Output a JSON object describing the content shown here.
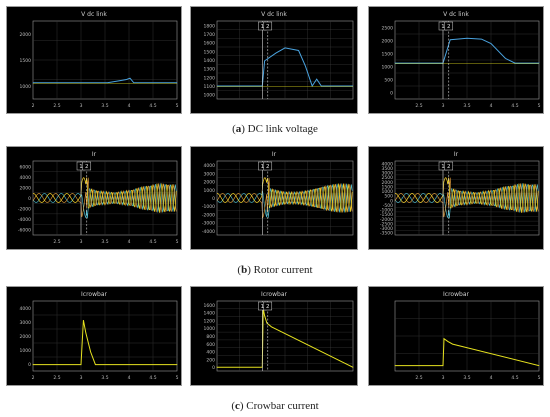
{
  "captions": {
    "a": {
      "label": "a",
      "text": "DC link voltage"
    },
    "b": {
      "label": "b",
      "text": "Rotor current"
    },
    "c": {
      "label": "c",
      "text": "Crowbar current"
    }
  },
  "colors": {
    "background": "#000000",
    "grid": "#3a3a3a",
    "axis": "#9a9a9a",
    "trace_blue": "#4aa3df",
    "trace_yellow": "#e6e21f",
    "trace_red": "#e84a4a",
    "trace_cyan": "#4ec4d8",
    "trace_orange": "#e9a23b",
    "marker": "#cfcfcf"
  },
  "chart_data": [
    {
      "type": "line",
      "title": "V dc link",
      "x": [
        2.0,
        3.55,
        3.8,
        3.95,
        4.02,
        4.1,
        5.0
      ],
      "series": [
        {
          "name": "",
          "values": [
            1150,
            1150,
            1180,
            1200,
            1220,
            1150,
            1150
          ]
        }
      ],
      "xlim": [
        2,
        5
      ],
      "ylim": [
        900,
        2100
      ],
      "xticks": [
        "2",
        "2.5",
        "3",
        "3.5",
        "4",
        "4.5",
        "5"
      ],
      "yticks": [
        "1000",
        "1500",
        "2000"
      ],
      "markers": []
    },
    {
      "type": "line",
      "title": "V dc link",
      "x": [
        2.0,
        3.0,
        3.05,
        3.3,
        3.5,
        3.8,
        3.95,
        4.1,
        4.2,
        4.3,
        5.0
      ],
      "series": [
        {
          "name": "",
          "values": [
            1150,
            1150,
            1440,
            1530,
            1590,
            1560,
            1380,
            1150,
            1230,
            1150,
            1150
          ]
        }
      ],
      "xlim": [
        2,
        5
      ],
      "ylim": [
        1000,
        1900
      ],
      "xticks": [],
      "yticks": [
        "1000",
        "1100",
        "1200",
        "1300",
        "1400",
        "1500",
        "1600",
        "1700",
        "1800"
      ],
      "markers": [
        "1",
        "2"
      ]
    },
    {
      "type": "line",
      "title": "V dc link",
      "x": [
        2.0,
        3.0,
        3.15,
        3.3,
        3.5,
        3.8,
        4.0,
        4.3,
        4.5,
        5.0
      ],
      "series": [
        {
          "name": "",
          "values": [
            1150,
            1150,
            1900,
            1920,
            1950,
            1920,
            1780,
            1300,
            1150,
            1150
          ]
        }
      ],
      "xlim": [
        2,
        5
      ],
      "ylim": [
        0,
        2500
      ],
      "xticks": [
        "2.5",
        "3",
        "3.5",
        "4",
        "4.5",
        "5"
      ],
      "yticks": [
        "0",
        "500",
        "1000",
        "1500",
        "2000",
        "2500"
      ],
      "markers": [
        "1",
        "2"
      ]
    },
    {
      "type": "line",
      "title": "Ir",
      "x": [
        2,
        3,
        3.05,
        3.5,
        4,
        5
      ],
      "series": [
        {
          "name": "",
          "values": [
            1500,
            1500,
            7000,
            3000,
            1200,
            1200
          ]
        }
      ],
      "xlim": [
        2,
        5
      ],
      "ylim": [
        -8000,
        8000
      ],
      "xticks": [
        "2.5",
        "3",
        "3.5",
        "4",
        "4.5",
        "5"
      ],
      "yticks": [
        "6000",
        "4000",
        "2000",
        "0",
        "-2000",
        "-4000",
        "-6000"
      ],
      "markers": [
        "1",
        "2"
      ]
    },
    {
      "type": "line",
      "title": "Ir",
      "x": [
        2,
        3,
        3.1,
        3.6,
        4.2,
        5
      ],
      "series": [
        {
          "name": "",
          "values": [
            1200,
            1200,
            5000,
            4000,
            3000,
            1200
          ]
        }
      ],
      "xlim": [
        2,
        5
      ],
      "ylim": [
        -5000,
        5000
      ],
      "xticks": [],
      "yticks": [
        "4000",
        "3000",
        "2000",
        "1000",
        "0",
        "-1000",
        "-2000",
        "-3000",
        "-4000"
      ],
      "markers": [
        "1",
        "2"
      ]
    },
    {
      "type": "line",
      "title": "Ir",
      "x": [
        2,
        3,
        3.1,
        3.6,
        4.2,
        5
      ],
      "series": [
        {
          "name": "",
          "values": [
            1200,
            1200,
            3500,
            3500,
            3000,
            1500
          ]
        }
      ],
      "xlim": [
        2,
        5
      ],
      "ylim": [
        -4000,
        4000
      ],
      "xticks": [],
      "yticks": [
        "4000",
        "3500",
        "3000",
        "2500",
        "2000",
        "1500",
        "1000",
        "500",
        "0",
        "-500",
        "-1000",
        "-1500",
        "-2000",
        "-2500",
        "-3000",
        "-3500"
      ],
      "markers": [
        "1",
        "2"
      ]
    },
    {
      "type": "line",
      "title": "Icrowbar",
      "x": [
        2.0,
        3.0,
        3.05,
        3.1,
        3.2,
        3.3,
        5.0
      ],
      "series": [
        {
          "name": "",
          "values": [
            0,
            0,
            3500,
            2500,
            1000,
            0,
            0
          ]
        }
      ],
      "xlim": [
        2,
        5
      ],
      "ylim": [
        -500,
        5000
      ],
      "xticks": [
        "2",
        "2.5",
        "3",
        "3.5",
        "4",
        "4.5",
        "5"
      ],
      "yticks": [
        "0",
        "1000",
        "2000",
        "3000",
        "4000"
      ],
      "markers": []
    },
    {
      "type": "line",
      "title": "Icrowbar",
      "x": [
        2.0,
        3.0,
        3.02,
        3.05,
        3.1,
        3.2,
        5.0
      ],
      "series": [
        {
          "name": "",
          "values": [
            0,
            0,
            1600,
            1400,
            1200,
            1100,
            0
          ]
        }
      ],
      "xlim": [
        2,
        5
      ],
      "ylim": [
        -100,
        1800
      ],
      "xticks": [],
      "yticks": [
        "0",
        "200",
        "400",
        "600",
        "800",
        "1000",
        "1200",
        "1400",
        "1600"
      ],
      "markers": [
        "1",
        "2"
      ]
    },
    {
      "type": "line",
      "title": "Icrowbar",
      "x": [
        2.0,
        3.0,
        3.02,
        3.1,
        3.2,
        5.0
      ],
      "series": [
        {
          "name": "",
          "values": [
            0,
            0,
            500,
            450,
            400,
            0
          ]
        }
      ],
      "xlim": [
        2,
        5
      ],
      "ylim": [
        -100,
        1200
      ],
      "xticks": [
        "2.5",
        "3",
        "3.5",
        "4",
        "4.5",
        "5"
      ],
      "yticks": [],
      "markers": []
    }
  ]
}
